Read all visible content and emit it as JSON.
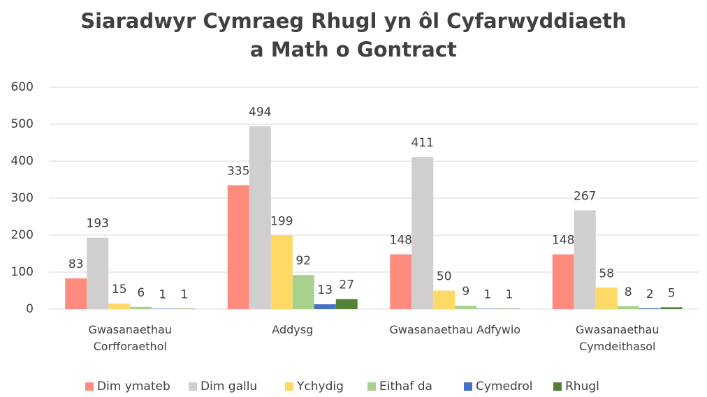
{
  "chart_data": {
    "type": "bar",
    "title": "Siaradwyr Cymraeg Rhugl yn ôl Cyfarwyddiaeth a Math o Gontract",
    "categories": [
      "Gwasanaethau Corfforaethol",
      "Addysg",
      "Gwasanaethau Adfywio",
      "Gwasanaethau Cymdeithasol"
    ],
    "series": [
      {
        "name": "Dim ymateb",
        "color": "#ff8b7f",
        "values": [
          83,
          335,
          148,
          148
        ]
      },
      {
        "name": "Dim gallu",
        "color": "#d0cece",
        "values": [
          193,
          494,
          411,
          267
        ]
      },
      {
        "name": "Ychydig",
        "color": "#ffd966",
        "values": [
          15,
          199,
          50,
          58
        ]
      },
      {
        "name": "Eithaf da",
        "color": "#a9d18e",
        "values": [
          6,
          92,
          9,
          8
        ]
      },
      {
        "name": "Cymedrol",
        "color": "#4472c4",
        "values": [
          1,
          13,
          1,
          2
        ]
      },
      {
        "name": "Rhugl",
        "color": "#548235",
        "values": [
          1,
          27,
          1,
          5
        ]
      }
    ],
    "ylim": [
      0,
      600
    ],
    "yticks": [
      0,
      100,
      200,
      300,
      400,
      500,
      600
    ],
    "grid": true,
    "legend": "bottom"
  }
}
